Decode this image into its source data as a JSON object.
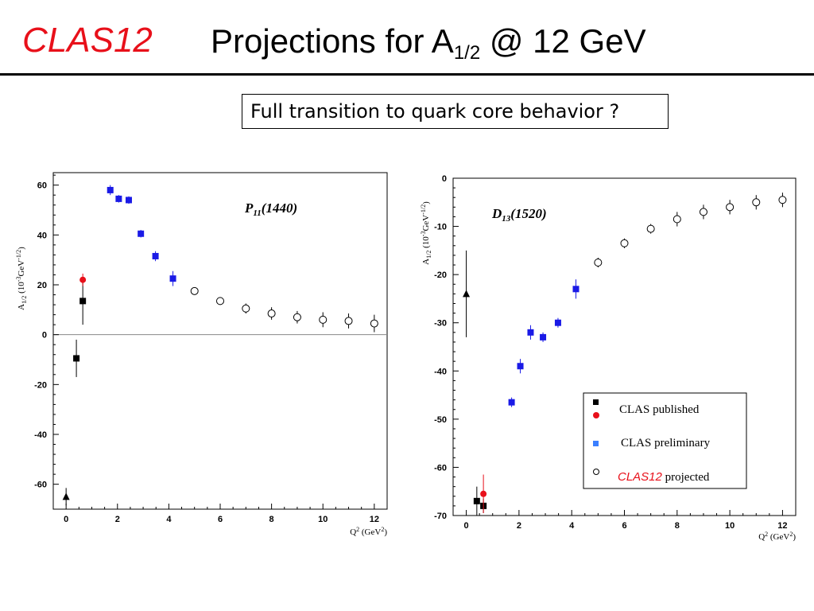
{
  "header": {
    "logo": "CLAS12",
    "title_main": "Projections for A",
    "title_sub": "1/2",
    "title_rest": " @ 12 GeV",
    "subtitle": "Full transition to quark core behavior ?"
  },
  "chart_data": [
    {
      "type": "scatter",
      "title": "P11(1440)",
      "label_main": "P",
      "label_sub": "11",
      "label_rest": "(1440)",
      "xlabel": "Q² (GeV²)",
      "ylabel": "A1/2 (10⁻³GeV⁻¹/²)",
      "xlim": [
        -0.5,
        12.5
      ],
      "ylim": [
        -70,
        65
      ],
      "xticks": [
        0,
        2,
        4,
        6,
        8,
        10,
        12
      ],
      "yticks": [
        -60,
        -40,
        -20,
        0,
        20,
        40,
        60
      ],
      "zero_line": true,
      "series": [
        {
          "name": "CLAS published",
          "marker": "square",
          "color": "#000000",
          "points": [
            {
              "x": 0.4,
              "y": -9.5,
              "err": 7.5
            },
            {
              "x": 0.65,
              "y": 13.5,
              "err": 9.5
            }
          ]
        },
        {
          "marker": "triangle",
          "color": "#000000",
          "points": [
            {
              "x": 0.0,
              "y": -65,
              "err": 3.5
            }
          ]
        },
        {
          "marker": "circle-filled",
          "color": "#e8101a",
          "points": [
            {
              "x": 0.65,
              "y": 22,
              "err": 2.5
            }
          ]
        },
        {
          "name": "CLAS preliminary",
          "marker": "square",
          "color": "#1a1ae6",
          "points": [
            {
              "x": 1.72,
              "y": 58,
              "err": 2.0
            },
            {
              "x": 2.05,
              "y": 54.5,
              "err": 1.5
            },
            {
              "x": 2.44,
              "y": 54,
              "err": 1.5
            },
            {
              "x": 2.91,
              "y": 40.5,
              "err": 1.5
            },
            {
              "x": 3.48,
              "y": 31.5,
              "err": 2.0
            },
            {
              "x": 4.16,
              "y": 22.5,
              "err": 3.0
            }
          ]
        },
        {
          "name": "CLAS12 projected",
          "marker": "circle-open",
          "color": "#000000",
          "points": [
            {
              "x": 5,
              "y": 17.5,
              "err": 1.5
            },
            {
              "x": 6,
              "y": 13.5,
              "err": 1.5
            },
            {
              "x": 7,
              "y": 10.5,
              "err": 2.0
            },
            {
              "x": 8,
              "y": 8.5,
              "err": 2.5
            },
            {
              "x": 9,
              "y": 7.0,
              "err": 2.5
            },
            {
              "x": 10,
              "y": 6.0,
              "err": 3.0
            },
            {
              "x": 11,
              "y": 5.5,
              "err": 3.0
            },
            {
              "x": 12,
              "y": 4.5,
              "err": 3.5
            }
          ]
        }
      ]
    },
    {
      "type": "scatter",
      "title": "D13(1520)",
      "label_main": "D",
      "label_sub": "13",
      "label_rest": "(1520)",
      "xlabel": "Q² (GeV²)",
      "ylabel": "A1/2 (10⁻³GeV⁻¹/²)",
      "xlim": [
        -0.5,
        12.5
      ],
      "ylim": [
        -70,
        0
      ],
      "xticks": [
        0,
        2,
        4,
        6,
        8,
        10,
        12
      ],
      "yticks": [
        -70,
        -60,
        -50,
        -40,
        -30,
        -20,
        -10,
        0
      ],
      "zero_line": false,
      "series": [
        {
          "name": "CLAS published",
          "marker": "square",
          "color": "#000000",
          "points": [
            {
              "x": 0.4,
              "y": -67,
              "err": 3.0
            },
            {
              "x": 0.65,
              "y": -68,
              "err": 1.5
            }
          ]
        },
        {
          "marker": "triangle",
          "color": "#000000",
          "points": [
            {
              "x": 0.0,
              "y": -24,
              "err": 9.0
            }
          ]
        },
        {
          "marker": "circle-filled",
          "color": "#e8101a",
          "points": [
            {
              "x": 0.65,
              "y": -65.5,
              "err": 4.0
            }
          ]
        },
        {
          "name": "CLAS preliminary",
          "marker": "square",
          "color": "#1a1ae6",
          "points": [
            {
              "x": 1.72,
              "y": -46.5,
              "err": 1.0
            },
            {
              "x": 2.05,
              "y": -39,
              "err": 1.5
            },
            {
              "x": 2.44,
              "y": -32,
              "err": 1.5
            },
            {
              "x": 2.91,
              "y": -33,
              "err": 1.0
            },
            {
              "x": 3.48,
              "y": -30,
              "err": 1.0
            },
            {
              "x": 4.16,
              "y": -23,
              "err": 2.0
            }
          ]
        },
        {
          "name": "CLAS12 projected",
          "marker": "circle-open",
          "color": "#000000",
          "points": [
            {
              "x": 5,
              "y": -17.5,
              "err": 1.0
            },
            {
              "x": 6,
              "y": -13.5,
              "err": 1.0
            },
            {
              "x": 7,
              "y": -10.5,
              "err": 1.0
            },
            {
              "x": 8,
              "y": -8.5,
              "err": 1.5
            },
            {
              "x": 9,
              "y": -7.0,
              "err": 1.5
            },
            {
              "x": 10,
              "y": -6.0,
              "err": 1.5
            },
            {
              "x": 11,
              "y": -5.0,
              "err": 1.5
            },
            {
              "x": 12,
              "y": -4.5,
              "err": 1.5
            }
          ]
        }
      ],
      "legend": {
        "position": "bottom-right",
        "entries": [
          {
            "label": "CLAS published"
          },
          {
            "label": "CLAS preliminary"
          },
          {
            "label_italic": "CLAS12",
            "label": " projected"
          }
        ]
      }
    }
  ]
}
